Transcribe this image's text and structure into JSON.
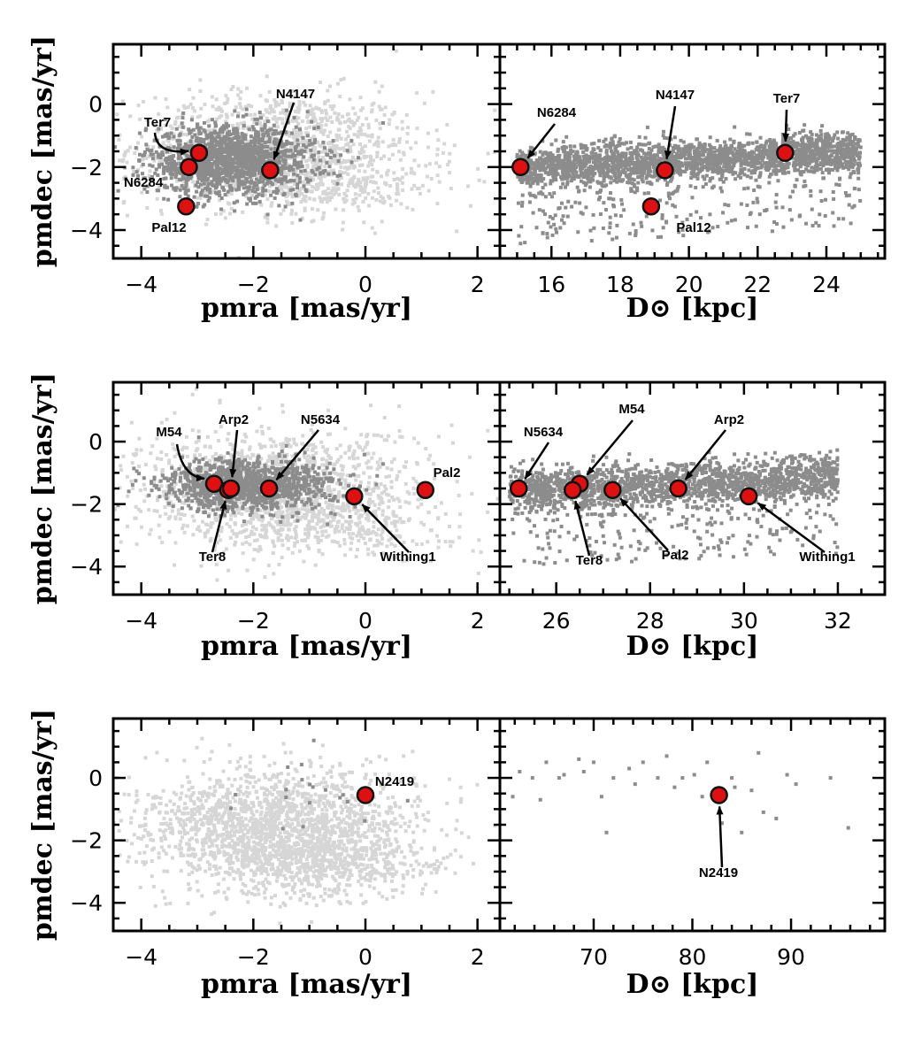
{
  "colors": {
    "dark": "#8c8c8c",
    "light": "#d6d6d6",
    "cluster_fill": "#dd1111",
    "cluster_edge": "#111111"
  },
  "chart_data": [
    {
      "type": "scatter",
      "panel": "row1-left",
      "xlabel": "pmra [mas/yr]",
      "ylabel": "pmdec [mas/yr]",
      "xlim": [
        -4.5,
        2.4
      ],
      "ylim": [
        -4.9,
        1.9
      ],
      "xticks": [
        -4,
        -2,
        0,
        2
      ],
      "xtick_labels": [
        "−4",
        "−2",
        "0",
        "2"
      ],
      "yticks": [
        -4,
        -2,
        0
      ],
      "ytick_labels": [
        "−4",
        "−2",
        "0"
      ],
      "light_cloud": {
        "cx": -1.6,
        "cy": -1.4,
        "sx": 1.3,
        "sy": 0.9,
        "n": 1200
      },
      "dark_cloud": {
        "cx": -2.4,
        "cy": -1.8,
        "sx": 0.75,
        "sy": 0.55,
        "n": 1500
      },
      "clusters": [
        {
          "name": "Ter7",
          "x": -2.97,
          "y": -1.55
        },
        {
          "name": "N6284",
          "x": -3.15,
          "y": -2.0
        },
        {
          "name": "N4147",
          "x": -1.7,
          "y": -2.1
        },
        {
          "name": "Pal12",
          "x": -3.2,
          "y": -3.25
        }
      ]
    },
    {
      "type": "scatter",
      "panel": "row1-right",
      "xlabel": "D⊙ [kpc]",
      "ylabel": "",
      "xlim": [
        14.5,
        25.7
      ],
      "ylim": [
        -4.9,
        1.9
      ],
      "xticks": [
        16,
        18,
        20,
        22,
        24
      ],
      "xtick_labels": [
        "16",
        "18",
        "20",
        "22",
        "24"
      ],
      "yticks": [
        -4,
        -2,
        0
      ],
      "ytick_labels": [],
      "band": {
        "x0": 15.0,
        "x1": 25.0,
        "y_start": -2.05,
        "y_end": -1.55,
        "spread": 0.55,
        "n": 2500
      },
      "clusters": [
        {
          "name": "N6284",
          "x": 15.1,
          "y": -2.0
        },
        {
          "name": "N4147",
          "x": 19.3,
          "y": -2.1
        },
        {
          "name": "Ter7",
          "x": 22.8,
          "y": -1.55
        },
        {
          "name": "Pal12",
          "x": 18.9,
          "y": -3.25
        }
      ]
    },
    {
      "type": "scatter",
      "panel": "row2-left",
      "xlabel": "pmra [mas/yr]",
      "ylabel": "pmdec [mas/yr]",
      "xlim": [
        -4.5,
        2.4
      ],
      "ylim": [
        -4.9,
        1.9
      ],
      "xticks": [
        -4,
        -2,
        0,
        2
      ],
      "xtick_labels": [
        "−4",
        "−2",
        "0",
        "2"
      ],
      "yticks": [
        -4,
        -2,
        0
      ],
      "ytick_labels": [
        "−4",
        "−2",
        "0"
      ],
      "light_cloud": {
        "cx": -1.5,
        "cy": -1.5,
        "sx": 1.3,
        "sy": 0.95,
        "n": 1200
      },
      "dark_cloud": {
        "cx": -2.1,
        "cy": -1.4,
        "sx": 0.75,
        "sy": 0.4,
        "n": 1200
      },
      "clusters": [
        {
          "name": "M54",
          "x": -2.7,
          "y": -1.35
        },
        {
          "name": "Ter8",
          "x": -2.45,
          "y": -1.55
        },
        {
          "name": "Arp2",
          "x": -2.4,
          "y": -1.5
        },
        {
          "name": "N5634",
          "x": -1.72,
          "y": -1.5
        },
        {
          "name": "Withing1",
          "x": -0.2,
          "y": -1.75
        },
        {
          "name": "Pal2",
          "x": 1.07,
          "y": -1.55
        }
      ]
    },
    {
      "type": "scatter",
      "panel": "row2-right",
      "xlabel": "D⊙ [kpc]",
      "ylabel": "",
      "xlim": [
        24.8,
        33.0
      ],
      "ylim": [
        -4.9,
        1.9
      ],
      "xticks": [
        26,
        28,
        30,
        32
      ],
      "xtick_labels": [
        "26",
        "28",
        "30",
        "32"
      ],
      "yticks": [
        -4,
        -2,
        0
      ],
      "ytick_labels": [],
      "band": {
        "x0": 25.0,
        "x1": 32.0,
        "y_start": -1.6,
        "y_end": -1.2,
        "spread": 0.6,
        "n": 2000
      },
      "clusters": [
        {
          "name": "N5634",
          "x": 25.2,
          "y": -1.5
        },
        {
          "name": "M54",
          "x": 26.5,
          "y": -1.35
        },
        {
          "name": "Ter8",
          "x": 26.35,
          "y": -1.55
        },
        {
          "name": "Pal2",
          "x": 27.2,
          "y": -1.55
        },
        {
          "name": "Arp2",
          "x": 28.6,
          "y": -1.5
        },
        {
          "name": "Withing1",
          "x": 30.1,
          "y": -1.75
        }
      ]
    },
    {
      "type": "scatter",
      "panel": "row3-left",
      "xlabel": "pmra [mas/yr]",
      "ylabel": "pmdec [mas/yr]",
      "xlim": [
        -4.5,
        2.4
      ],
      "ylim": [
        -4.9,
        1.9
      ],
      "xticks": [
        -4,
        -2,
        0,
        2
      ],
      "xtick_labels": [
        "−4",
        "−2",
        "0",
        "2"
      ],
      "yticks": [
        -4,
        -2,
        0
      ],
      "ytick_labels": [
        "−4",
        "−2",
        "0"
      ],
      "light_cloud": {
        "cx": -1.6,
        "cy": -1.6,
        "sx": 1.2,
        "sy": 0.95,
        "n": 1800
      },
      "dark_cloud": {
        "cx": -1.0,
        "cy": -0.5,
        "sx": 0.7,
        "sy": 0.7,
        "n": 20
      },
      "clusters": [
        {
          "name": "N2419",
          "x": 0.0,
          "y": -0.55
        }
      ]
    },
    {
      "type": "scatter",
      "panel": "row3-right",
      "xlabel": "D⊙ [kpc]",
      "ylabel": "",
      "xlim": [
        60.5,
        99.5
      ],
      "ylim": [
        -4.9,
        1.9
      ],
      "xticks": [
        70,
        80,
        90
      ],
      "xtick_labels": [
        "70",
        "80",
        "90"
      ],
      "yticks": [
        -4,
        -2,
        0
      ],
      "ytick_labels": [],
      "sparse_points": [
        [
          61.8,
          -0.6
        ],
        [
          62.5,
          0.2
        ],
        [
          63.8,
          0.0
        ],
        [
          64.6,
          -0.7
        ],
        [
          65.2,
          0.5
        ],
        [
          66.5,
          0.0
        ],
        [
          67.0,
          0.1
        ],
        [
          68.5,
          0.6
        ],
        [
          69.0,
          0.2
        ],
        [
          70.0,
          0.5
        ],
        [
          70.8,
          -0.6
        ],
        [
          71.3,
          -1.75
        ],
        [
          72.0,
          0.0
        ],
        [
          73.6,
          0.3
        ],
        [
          74.2,
          -0.2
        ],
        [
          75.0,
          0.5
        ],
        [
          76.5,
          0.0
        ],
        [
          77.4,
          0.7
        ],
        [
          78.2,
          -0.3
        ],
        [
          79.0,
          0.0
        ],
        [
          80.2,
          0.1
        ],
        [
          81.0,
          -0.6
        ],
        [
          81.5,
          0.5
        ],
        [
          83.0,
          -1.45
        ],
        [
          84.0,
          0.0
        ],
        [
          84.3,
          -0.3
        ],
        [
          85.0,
          -1.75
        ],
        [
          86.0,
          -0.4
        ],
        [
          86.7,
          0.8
        ],
        [
          87.2,
          -1.1
        ],
        [
          88.5,
          -1.3
        ],
        [
          89.6,
          0.1
        ],
        [
          90.5,
          -0.2
        ],
        [
          94.0,
          0.0
        ],
        [
          95.8,
          -1.6
        ]
      ],
      "clusters": [
        {
          "name": "N2419",
          "x": 82.7,
          "y": -0.55
        }
      ]
    }
  ]
}
